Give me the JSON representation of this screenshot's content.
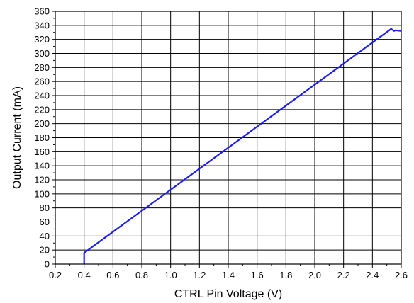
{
  "chart_data": {
    "type": "line",
    "title": "",
    "xlabel": "CTRL Pin Voltage (V)",
    "ylabel": "Output Current (mA)",
    "xlim": [
      0.2,
      2.6
    ],
    "ylim": [
      0,
      360
    ],
    "x_ticks": [
      0.2,
      0.4,
      0.6,
      0.8,
      1.0,
      1.2,
      1.4,
      1.6,
      1.8,
      2.0,
      2.2,
      2.4,
      2.6
    ],
    "x_tick_labels": [
      "0.2",
      "0.4",
      "0.6",
      "0.8",
      "1.0",
      "1.2",
      "1.4",
      "1.6",
      "1.8",
      "2.0",
      "2.2",
      "2.4",
      "2.6"
    ],
    "y_ticks": [
      0,
      20,
      40,
      60,
      80,
      100,
      120,
      140,
      160,
      180,
      200,
      220,
      240,
      260,
      280,
      300,
      320,
      340,
      360
    ],
    "y_tick_labels": [
      "0",
      "20",
      "40",
      "60",
      "80",
      "100",
      "120",
      "140",
      "160",
      "180",
      "200",
      "220",
      "240",
      "260",
      "280",
      "300",
      "320",
      "340",
      "360"
    ],
    "grid": true,
    "series": [
      {
        "color": "#1a1aff",
        "x": [
          0.4,
          0.4,
          0.4,
          2.53,
          2.55,
          2.56,
          2.6
        ],
        "y": [
          0,
          10,
          16,
          335,
          332,
          333,
          332
        ]
      }
    ]
  }
}
